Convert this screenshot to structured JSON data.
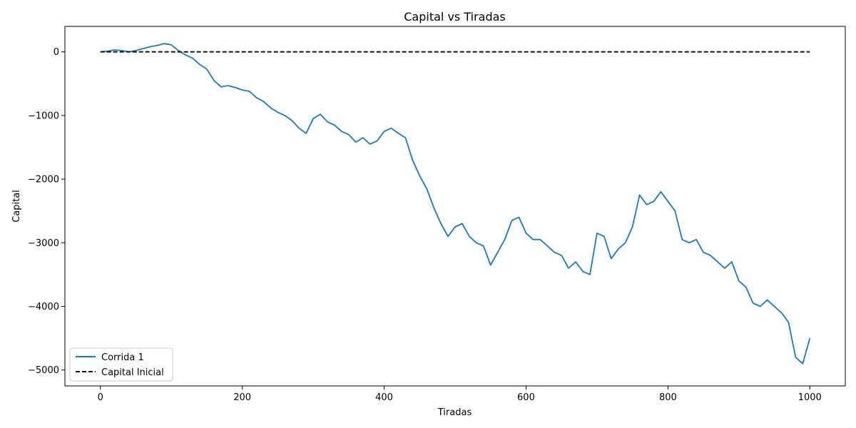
{
  "chart_data": {
    "type": "line",
    "title": "Capital vs Tiradas",
    "xlabel": "Tiradas",
    "ylabel": "Capital",
    "xlim": [
      -50,
      1050
    ],
    "ylim": [
      -5250,
      400
    ],
    "xticks": [
      0,
      200,
      400,
      600,
      800,
      1000
    ],
    "xtick_labels": [
      "0",
      "200",
      "400",
      "600",
      "800",
      "1000"
    ],
    "yticks": [
      0,
      -1000,
      -2000,
      -3000,
      -4000,
      -5000
    ],
    "ytick_labels": [
      "0",
      "−1000",
      "−2000",
      "−3000",
      "−4000",
      "−5000"
    ],
    "grid": false,
    "legend_position": "lower-left",
    "series": [
      {
        "name": "Corrida 1",
        "color": "#1f77b4",
        "style": "solid",
        "x": [
          0,
          10,
          20,
          30,
          40,
          50,
          60,
          70,
          80,
          90,
          100,
          110,
          120,
          130,
          140,
          150,
          160,
          170,
          180,
          190,
          200,
          210,
          220,
          230,
          240,
          250,
          260,
          270,
          280,
          290,
          300,
          310,
          320,
          330,
          340,
          350,
          360,
          370,
          380,
          390,
          400,
          410,
          420,
          430,
          440,
          450,
          460,
          470,
          480,
          490,
          500,
          510,
          520,
          530,
          540,
          550,
          560,
          570,
          580,
          590,
          600,
          610,
          620,
          630,
          640,
          650,
          660,
          670,
          680,
          690,
          700,
          710,
          720,
          730,
          740,
          750,
          760,
          770,
          780,
          790,
          800,
          810,
          820,
          830,
          840,
          850,
          860,
          870,
          880,
          890,
          900,
          910,
          920,
          930,
          940,
          950,
          960,
          970,
          980,
          990,
          1000
        ],
        "y": [
          0,
          10,
          30,
          20,
          0,
          20,
          50,
          80,
          100,
          130,
          110,
          20,
          -50,
          -100,
          -200,
          -270,
          -450,
          -550,
          -530,
          -560,
          -600,
          -620,
          -720,
          -780,
          -880,
          -950,
          -1000,
          -1080,
          -1200,
          -1280,
          -1050,
          -980,
          -1100,
          -1150,
          -1250,
          -1300,
          -1420,
          -1350,
          -1450,
          -1400,
          -1250,
          -1200,
          -1280,
          -1350,
          -1700,
          -1950,
          -2150,
          -2450,
          -2700,
          -2900,
          -2750,
          -2700,
          -2900,
          -3000,
          -3050,
          -3350,
          -3150,
          -2950,
          -2650,
          -2600,
          -2850,
          -2950,
          -2950,
          -3050,
          -3150,
          -3200,
          -3400,
          -3300,
          -3450,
          -3500,
          -2850,
          -2900,
          -3250,
          -3100,
          -3000,
          -2750,
          -2250,
          -2400,
          -2350,
          -2200,
          -2350,
          -2500,
          -2950,
          -3000,
          -2950,
          -3150,
          -3200,
          -3300,
          -3400,
          -3300,
          -3600,
          -3700,
          -3950,
          -4000,
          -3900,
          -4000,
          -4100,
          -4250,
          -4800,
          -4900,
          -4500
        ]
      },
      {
        "name": "Capital Inicial",
        "color": "#000000",
        "style": "dashed",
        "x": [
          0,
          1000
        ],
        "y": [
          0,
          0
        ]
      }
    ]
  }
}
